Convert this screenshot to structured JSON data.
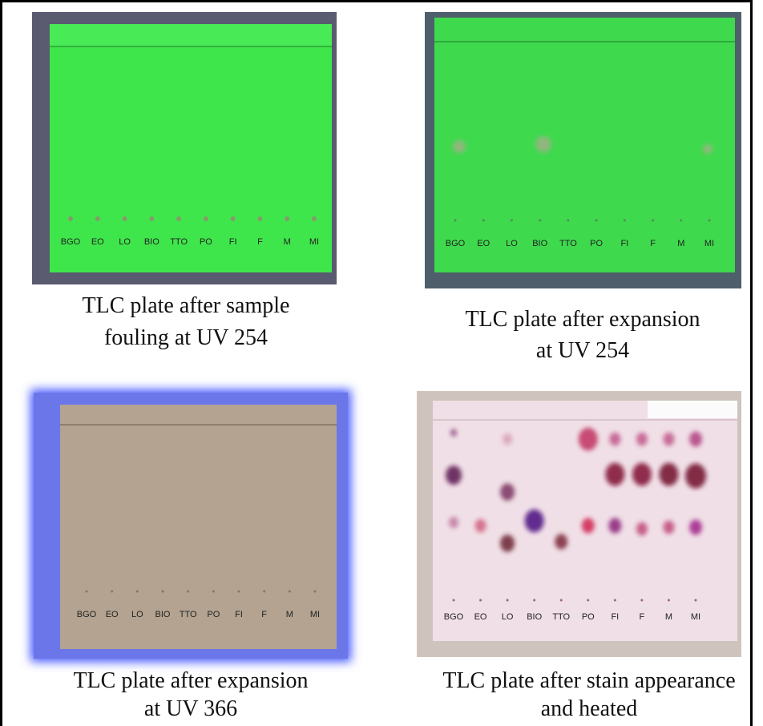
{
  "panels": [
    {
      "lanes": [
        "BGO",
        "EO",
        "LO",
        "BIO",
        "TTO",
        "PO",
        "FI",
        "F",
        "M",
        "MI"
      ],
      "caption": [
        "TLC plate after sample",
        "fouling at UV 254"
      ]
    },
    {
      "lanes": [
        "BGO",
        "EO",
        "LO",
        "BIO",
        "TTO",
        "PO",
        "FI",
        "F",
        "M",
        "MI"
      ],
      "caption": [
        "TLC plate after expansion",
        "at UV 254"
      ]
    },
    {
      "lanes": [
        "BGO",
        "EO",
        "LO",
        "BIO",
        "TTO",
        "PO",
        "FI",
        "F",
        "M",
        "MI"
      ],
      "caption": [
        "TLC plate after expansion",
        "at UV 366"
      ]
    },
    {
      "lanes": [
        "BGO",
        "EO",
        "LO",
        "BIO",
        "TTO",
        "PO",
        "FI",
        "F",
        "M",
        "MI"
      ],
      "caption": [
        "TLC plate after stain appearance",
        "and heated"
      ]
    }
  ]
}
